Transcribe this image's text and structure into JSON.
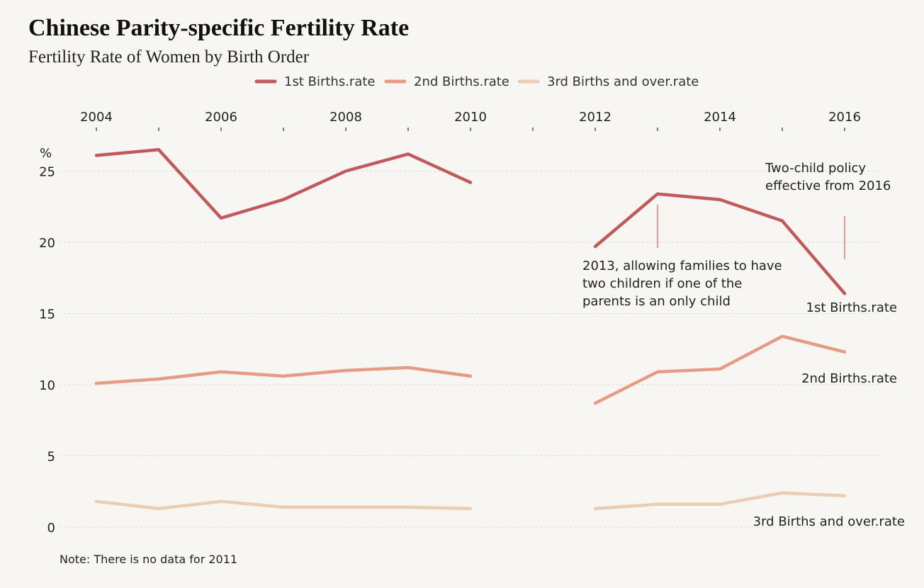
{
  "chart_data": {
    "type": "line",
    "title": "Chinese Parity-specific Fertility Rate",
    "subtitle": "Fertility Rate of Women by Birth Order",
    "ylabel": "%",
    "xlim": [
      2004,
      2016
    ],
    "ylim": [
      0,
      27
    ],
    "x_ticks": [
      2004,
      2006,
      2008,
      2010,
      2012,
      2014,
      2016
    ],
    "y_ticks": [
      0,
      5,
      10,
      15,
      20,
      25
    ],
    "x_axis_position": "top",
    "grid": true,
    "legend_position": "top-center",
    "x": [
      2004,
      2005,
      2006,
      2007,
      2008,
      2009,
      2010,
      2011,
      2012,
      2013,
      2014,
      2015,
      2016
    ],
    "series": [
      {
        "name": "1st Births.rate",
        "color": "#c05a5c",
        "values": [
          26.1,
          26.5,
          21.7,
          23.0,
          25.0,
          26.2,
          24.2,
          null,
          19.7,
          23.4,
          23.0,
          21.5,
          16.4
        ]
      },
      {
        "name": "2nd Births.rate",
        "color": "#e69c84",
        "values": [
          10.1,
          10.4,
          10.9,
          10.6,
          11.0,
          11.2,
          10.6,
          null,
          8.7,
          10.9,
          11.1,
          13.4,
          12.3
        ]
      },
      {
        "name": "3rd Births and over.rate",
        "color": "#ebcdb3",
        "values": [
          1.8,
          1.3,
          1.8,
          1.4,
          1.4,
          1.4,
          1.3,
          null,
          1.3,
          1.6,
          1.6,
          2.4,
          2.2
        ]
      }
    ],
    "annotations": [
      {
        "x": 2013,
        "lines": [
          "2013, allowing families to have",
          "two children if one of the",
          "parents is an only child"
        ]
      },
      {
        "x": 2016,
        "lines": [
          "Two-child policy",
          "effective from 2016"
        ]
      }
    ],
    "note": "Note: There is no data for 2011"
  }
}
